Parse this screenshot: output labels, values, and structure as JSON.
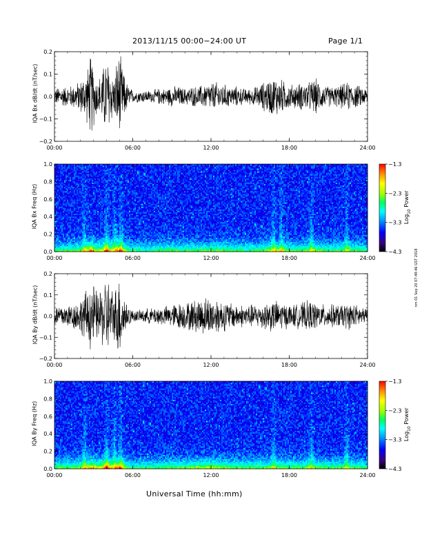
{
  "header": {
    "title": "2013/11/15  00:00−24:00 UT",
    "page_label": "Page 1/1"
  },
  "footer": {
    "x_axis_title": "Universal Time (hh:mm)",
    "stamp": "nm 01 Sep 20 07:49:46 GST 2018"
  },
  "chart_data": [
    {
      "type": "line",
      "ylabel": "IQA Bx dB/dt (nT/sec)",
      "x_ticks": [
        "00:00",
        "06:00",
        "12:00",
        "18:00",
        "24:00"
      ],
      "xlim": [
        "00:00",
        "24:00"
      ],
      "ylim": [
        -0.2,
        0.2
      ],
      "y_ticks": [
        "−0.2",
        "−0.1",
        "0.0",
        "0.1",
        "0.2"
      ],
      "series": [
        {
          "x_hours": [
            0,
            0.5,
            1,
            1.5,
            2,
            2.5,
            2.8,
            3,
            3.3,
            3.6,
            4,
            4.3,
            4.6,
            4.8,
            5,
            5.3,
            5.6,
            6,
            6.5,
            7,
            7.5,
            8,
            8.5,
            9,
            9.5,
            10,
            10.5,
            11,
            11.5,
            12,
            12.5,
            13,
            13.5,
            14,
            14.5,
            15,
            15.5,
            16,
            16.5,
            17,
            17.5,
            18,
            18.5,
            19,
            19.5,
            20,
            20.5,
            21,
            21.5,
            22,
            22.5,
            23,
            23.5,
            24
          ],
          "amplitude": [
            0.04,
            0.05,
            0.05,
            0.06,
            0.08,
            0.13,
            0.21,
            0.15,
            0.08,
            0.12,
            0.2,
            0.14,
            0.09,
            0.2,
            0.21,
            0.12,
            0.06,
            0.03,
            0.03,
            0.03,
            0.03,
            0.04,
            0.04,
            0.05,
            0.05,
            0.04,
            0.05,
            0.05,
            0.06,
            0.07,
            0.07,
            0.06,
            0.05,
            0.05,
            0.04,
            0.04,
            0.05,
            0.07,
            0.09,
            0.1,
            0.08,
            0.06,
            0.06,
            0.07,
            0.07,
            0.09,
            0.06,
            0.05,
            0.05,
            0.06,
            0.07,
            0.06,
            0.05,
            0.04
          ]
        }
      ]
    },
    {
      "type": "heatmap",
      "ylabel": "IQA Bx Freq (Hz)",
      "x_ticks": [
        "00:00",
        "06:00",
        "12:00",
        "18:00",
        "24:00"
      ],
      "y_ticks": [
        "0.0",
        "0.2",
        "0.4",
        "0.6",
        "0.8",
        "1.0"
      ],
      "ylim": [
        0,
        1.0
      ],
      "colorbar": {
        "title": "Log10 Power",
        "ticks": [
          "−4.3",
          "−3.3",
          "−2.3",
          "−1.3"
        ]
      },
      "enhanced_bands_hours": [
        2.3,
        4.0,
        4.6,
        5.1,
        16.8,
        17.4,
        19.7,
        22.4
      ]
    },
    {
      "type": "line",
      "ylabel": "IQA By dB/dt (nT/sec)",
      "x_ticks": [
        "00:00",
        "06:00",
        "12:00",
        "18:00",
        "24:00"
      ],
      "xlim": [
        "00:00",
        "24:00"
      ],
      "ylim": [
        -0.2,
        0.2
      ],
      "y_ticks": [
        "−0.2",
        "−0.1",
        "0.0",
        "0.1",
        "0.2"
      ],
      "series": [
        {
          "x_hours": [
            0,
            0.5,
            1,
            1.5,
            2,
            2.5,
            2.8,
            3,
            3.3,
            3.6,
            4,
            4.3,
            4.6,
            4.8,
            5,
            5.3,
            5.6,
            6,
            6.5,
            7,
            7.5,
            8,
            8.5,
            9,
            9.5,
            10,
            10.5,
            11,
            11.5,
            12,
            12.5,
            13,
            13.5,
            14,
            14.5,
            15,
            15.5,
            16,
            16.5,
            17,
            17.5,
            18,
            18.5,
            19,
            19.5,
            20,
            20.5,
            21,
            21.5,
            22,
            22.5,
            23,
            23.5,
            24
          ],
          "amplitude": [
            0.05,
            0.06,
            0.06,
            0.07,
            0.09,
            0.14,
            0.18,
            0.17,
            0.12,
            0.15,
            0.21,
            0.17,
            0.12,
            0.21,
            0.21,
            0.12,
            0.06,
            0.03,
            0.03,
            0.04,
            0.04,
            0.05,
            0.05,
            0.06,
            0.07,
            0.07,
            0.08,
            0.09,
            0.1,
            0.1,
            0.09,
            0.08,
            0.07,
            0.06,
            0.06,
            0.06,
            0.06,
            0.07,
            0.08,
            0.08,
            0.07,
            0.06,
            0.06,
            0.07,
            0.08,
            0.07,
            0.06,
            0.06,
            0.06,
            0.06,
            0.07,
            0.06,
            0.05,
            0.04
          ]
        }
      ]
    },
    {
      "type": "heatmap",
      "ylabel": "IQA By Freq (Hz)",
      "x_ticks": [
        "00:00",
        "06:00",
        "12:00",
        "18:00",
        "24:00"
      ],
      "y_ticks": [
        "0.0",
        "0.2",
        "0.4",
        "0.6",
        "0.8",
        "1.0"
      ],
      "ylim": [
        0,
        1.0
      ],
      "colorbar": {
        "title": "Log10 Power",
        "ticks": [
          "−4.3",
          "−3.3",
          "−2.3",
          "−1.3"
        ]
      },
      "enhanced_bands_hours": [
        2.3,
        4.0,
        4.6,
        5.1,
        16.8,
        19.7,
        22.4
      ]
    }
  ],
  "colors": {
    "trace": "#000000",
    "colormap": [
      "#000000",
      "#3a0080",
      "#0000ff",
      "#00a0ff",
      "#00ffff",
      "#00ff60",
      "#a0ff00",
      "#ffff00",
      "#ff8000",
      "#ff0000"
    ]
  }
}
